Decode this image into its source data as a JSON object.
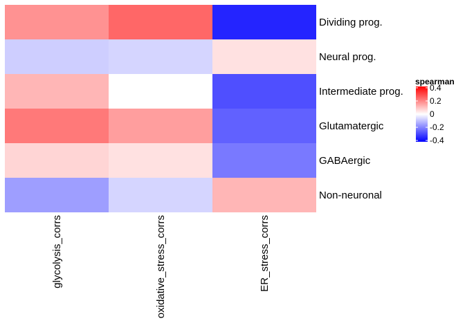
{
  "chart_data": {
    "type": "heatmap",
    "title": "",
    "xlabel": "",
    "ylabel": "",
    "columns": [
      "glycolysis_corrs",
      "oxidative_stress_corrs",
      "ER_stress_corrs"
    ],
    "rows": [
      "Dividing prog.",
      "Neural prog.",
      "Intermediate prog.",
      "Glutamatergic",
      "GABAergic",
      "Non-neuronal"
    ],
    "values": [
      [
        0.18,
        0.25,
        -0.36
      ],
      [
        -0.08,
        -0.07,
        0.05
      ],
      [
        0.12,
        0.0,
        -0.29
      ],
      [
        0.22,
        0.16,
        -0.26
      ],
      [
        0.07,
        0.05,
        -0.22
      ],
      [
        -0.16,
        -0.07,
        0.12
      ]
    ],
    "legend": {
      "title": "spearman",
      "ticks": [
        0.4,
        0.2,
        0,
        -0.2,
        -0.4
      ],
      "tick_labels": [
        "0.4",
        "0.2",
        "0",
        "-0.2",
        "-0.4"
      ],
      "range": [
        -0.42,
        0.42
      ],
      "placement": "right"
    },
    "colors": {
      "low": "#0000ff",
      "mid": "#ffffff",
      "high": "#ff0000"
    },
    "grid": false
  }
}
